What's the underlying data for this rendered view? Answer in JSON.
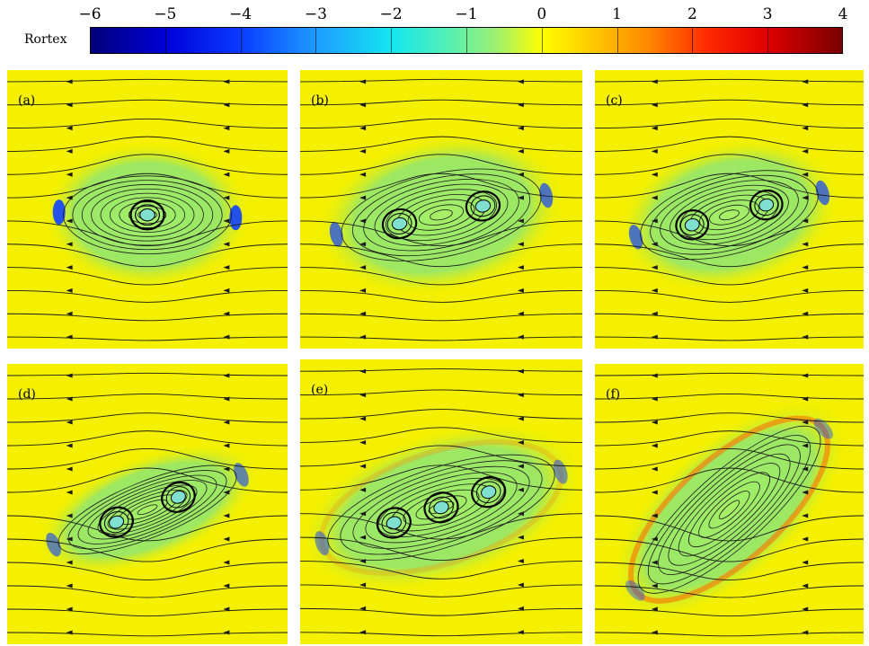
{
  "chart_data": {
    "type": "heatmap",
    "colorbar": {
      "title": "Rortex",
      "ticks": [
        "−6",
        "−5",
        "−4",
        "−3",
        "−2",
        "−1",
        "0",
        "1",
        "2",
        "3",
        "4"
      ],
      "range": [
        -6,
        4
      ],
      "colors": [
        "#00007a",
        "#0000d8",
        "#0a3cff",
        "#1e9bff",
        "#14e6f0",
        "#9ff070",
        "#ffff00",
        "#ff8a00",
        "#ff2a00",
        "#7a0000"
      ]
    },
    "panels": [
      {
        "label": "(a)"
      },
      {
        "label": "(b)"
      },
      {
        "label": "(c)"
      },
      {
        "label": "(d)"
      },
      {
        "label": "(e)"
      },
      {
        "label": "(f)"
      }
    ],
    "background_color": "#f4f000"
  }
}
